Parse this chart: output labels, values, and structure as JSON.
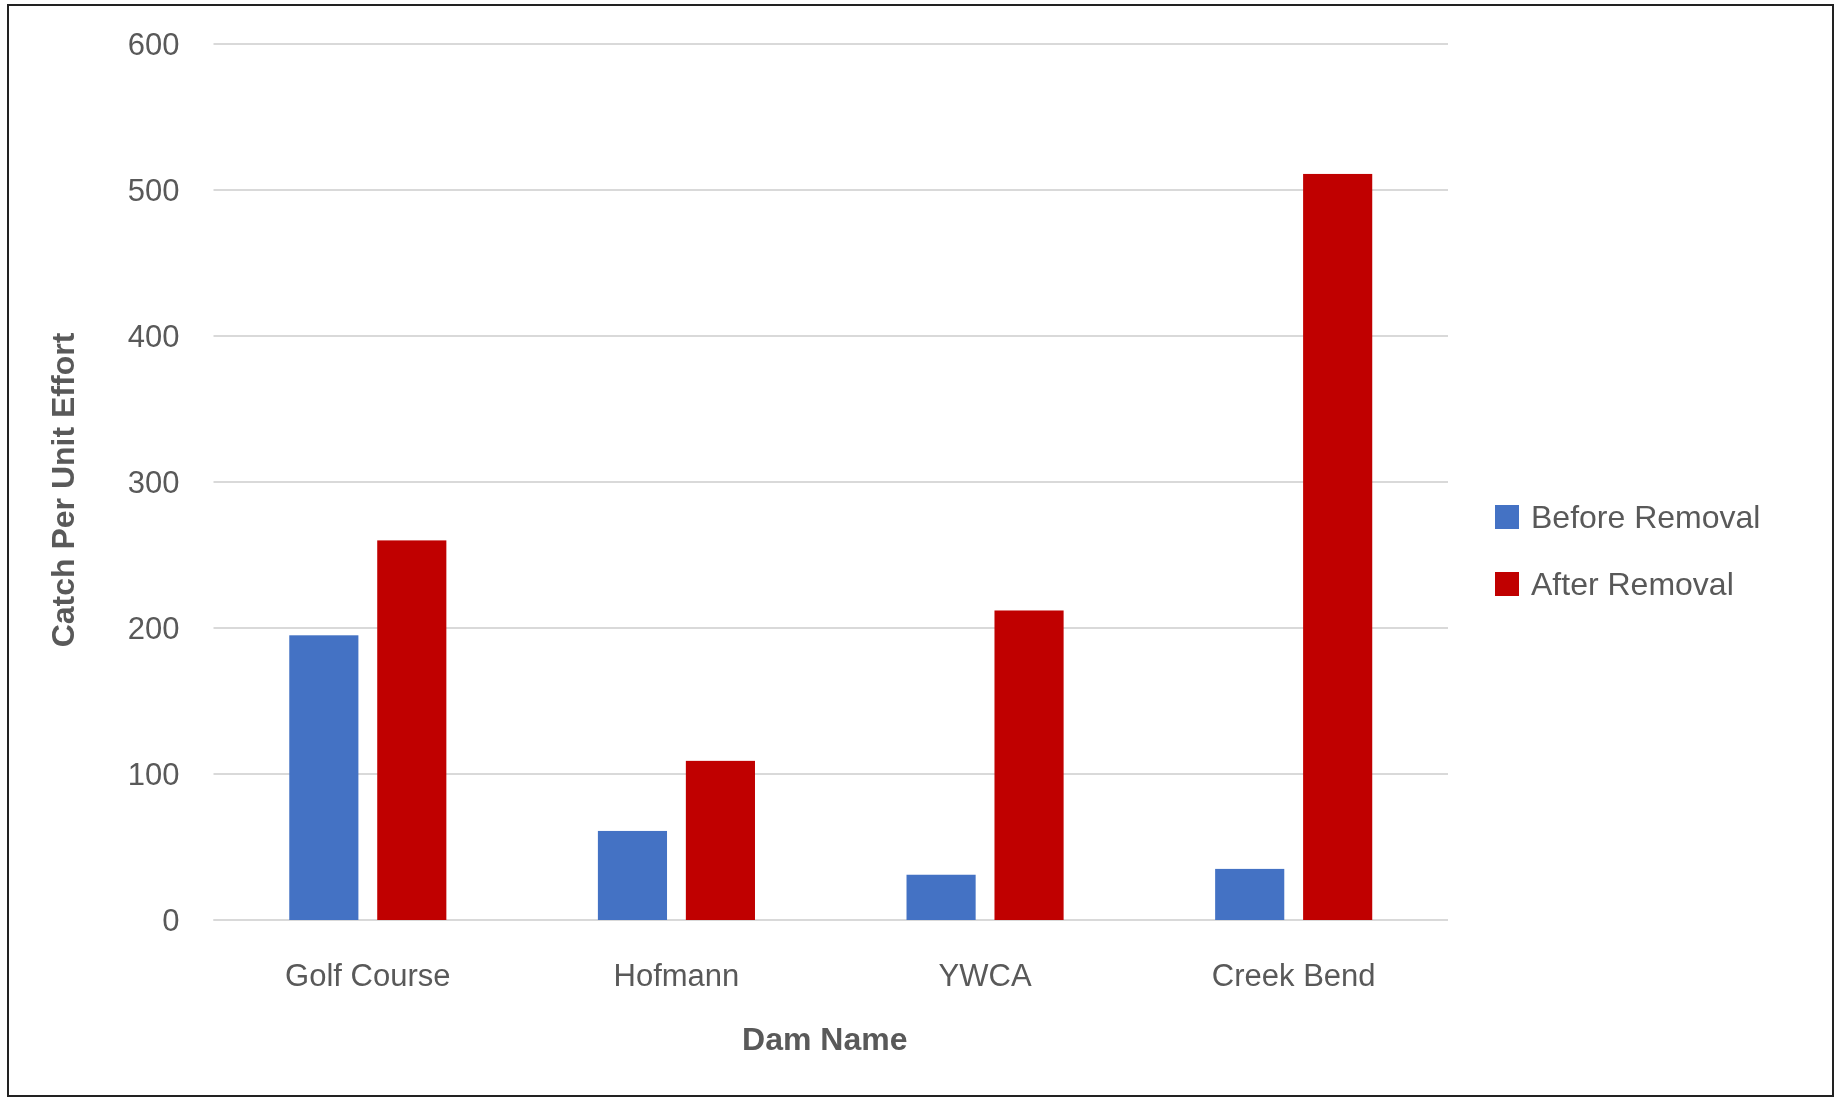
{
  "chart_data": {
    "type": "bar",
    "xlabel": "Dam Name",
    "ylabel": "Catch Per Unit Effort",
    "categories": [
      "Golf Course",
      "Hofmann",
      "YWCA",
      "Creek Bend"
    ],
    "series": [
      {
        "name": "Before Removal",
        "color": "#4472c4",
        "values": [
          195,
          61,
          31,
          35
        ]
      },
      {
        "name": "After Removal",
        "color": "#c00000",
        "values": [
          260,
          109,
          212,
          511
        ]
      }
    ],
    "ylim": [
      0,
      600
    ],
    "yticks": [
      0,
      100,
      200,
      300,
      400,
      500,
      600
    ],
    "grid": "y",
    "legend": "right"
  }
}
